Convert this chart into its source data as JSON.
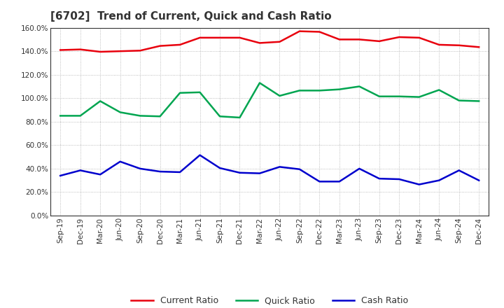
{
  "title": "[6702]  Trend of Current, Quick and Cash Ratio",
  "labels": [
    "Sep-19",
    "Dec-19",
    "Mar-20",
    "Jun-20",
    "Sep-20",
    "Dec-20",
    "Mar-21",
    "Jun-21",
    "Sep-21",
    "Dec-21",
    "Mar-22",
    "Jun-22",
    "Sep-22",
    "Dec-22",
    "Mar-23",
    "Jun-23",
    "Sep-23",
    "Dec-23",
    "Mar-24",
    "Jun-24",
    "Sep-24",
    "Dec-24"
  ],
  "current_ratio": [
    141.0,
    141.5,
    139.5,
    140.0,
    140.5,
    144.5,
    145.5,
    151.5,
    151.5,
    151.5,
    147.0,
    148.0,
    157.0,
    156.5,
    150.0,
    150.0,
    148.5,
    152.0,
    151.5,
    145.5,
    145.0,
    143.5
  ],
  "quick_ratio": [
    85.0,
    85.0,
    97.5,
    88.0,
    85.0,
    84.5,
    104.5,
    105.0,
    84.5,
    83.5,
    113.0,
    102.0,
    106.5,
    106.5,
    107.5,
    110.0,
    101.5,
    101.5,
    101.0,
    107.0,
    98.0,
    97.5
  ],
  "cash_ratio": [
    34.0,
    38.5,
    35.0,
    46.0,
    40.0,
    37.5,
    37.0,
    51.5,
    40.5,
    36.5,
    36.0,
    41.5,
    39.5,
    29.0,
    29.0,
    40.0,
    31.5,
    31.0,
    26.5,
    30.0,
    38.5,
    30.0
  ],
  "current_color": "#e8000d",
  "quick_color": "#00a550",
  "cash_color": "#0000cd",
  "ylim": [
    0,
    160
  ],
  "yticks": [
    0,
    20,
    40,
    60,
    80,
    100,
    120,
    140,
    160
  ],
  "background_color": "#ffffff",
  "grid_color": "#aaaaaa",
  "line_width": 1.8,
  "title_fontsize": 11,
  "tick_fontsize": 7.5,
  "legend_fontsize": 9
}
